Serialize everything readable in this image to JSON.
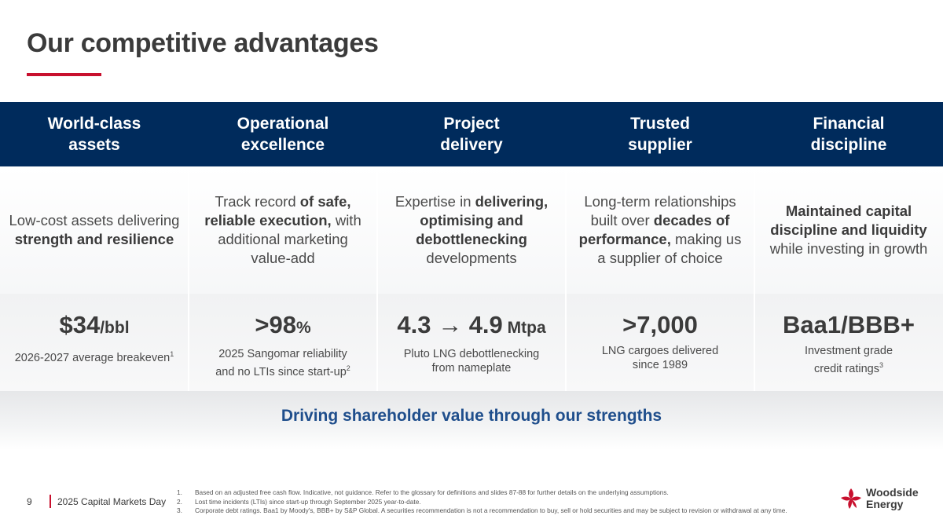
{
  "title": "Our competitive advantages",
  "columns": [
    {
      "heading": [
        "World-class",
        "assets"
      ],
      "desc": [
        {
          "t": "Low-cost assets delivering ",
          "b": false
        },
        {
          "t": "strength and resilience",
          "b": true
        }
      ],
      "metric_main": "$34",
      "metric_unit": "/bbl",
      "metric_sub": [
        "2026-2027 average breakeven"
      ],
      "metric_sup": "1"
    },
    {
      "heading": [
        "Operational",
        "excellence"
      ],
      "desc": [
        {
          "t": "Track record ",
          "b": false
        },
        {
          "t": "of safe, reliable execution,",
          "b": true
        },
        {
          "t": " with additional marketing value-add",
          "b": false
        }
      ],
      "metric_main": ">98",
      "metric_unit": "%",
      "metric_sub": [
        "2025 Sangomar reliability",
        "and no LTIs since start-up"
      ],
      "metric_sup": "2"
    },
    {
      "heading": [
        "Project",
        "delivery"
      ],
      "desc": [
        {
          "t": "Expertise in ",
          "b": false
        },
        {
          "t": "delivering, optimising and debottlenecking",
          "b": true
        },
        {
          "t": " developments",
          "b": false
        }
      ],
      "metric_main": "4.3 → 4.9",
      "metric_unit": " Mtpa",
      "metric_sub": [
        "Pluto LNG debottlenecking",
        "from nameplate"
      ],
      "metric_sup": ""
    },
    {
      "heading": [
        "Trusted",
        "supplier"
      ],
      "desc": [
        {
          "t": "Long-term relationships built over ",
          "b": false
        },
        {
          "t": "decades of performance,",
          "b": true
        },
        {
          "t": " making us a supplier of choice",
          "b": false
        }
      ],
      "metric_main": ">7,000",
      "metric_unit": "",
      "metric_sub": [
        "LNG cargoes delivered",
        "since 1989"
      ],
      "metric_sup": ""
    },
    {
      "heading": [
        "Financial",
        "discipline"
      ],
      "desc": [
        {
          "t": "Maintained capital discipline and liquidity",
          "b": true
        },
        {
          "t": " while investing in growth",
          "b": false
        }
      ],
      "metric_main": "Baa1/BBB+",
      "metric_unit": "",
      "metric_sub": [
        "Investment grade",
        "credit ratings"
      ],
      "metric_sup": "3"
    }
  ],
  "banner": "Driving shareholder value through our strengths",
  "footer": {
    "page": "9",
    "event": "2025 Capital Markets Day",
    "notes": [
      {
        "num": "1.",
        "text": "Based on an adjusted free cash flow. Indicative, not guidance. Refer to the glossary for definitions and slides 87-88 for further details on the underlying assumptions."
      },
      {
        "num": "2.",
        "text": "Lost time incidents (LTIs) since start-up through September 2025 year-to-date."
      },
      {
        "num": "3.",
        "text": "Corporate debt ratings. Baa1 by Moody's, BBB+ by S&P Global. A securities recommendation is not a recommendation to buy, sell or hold securities and may be subject to revision or withdrawal at any time."
      }
    ],
    "logo_line1": "Woodside",
    "logo_line2": "Energy"
  },
  "colors": {
    "navy": "#002b5c",
    "accent": "#c8102e",
    "banner_text": "#1f4e8c"
  }
}
